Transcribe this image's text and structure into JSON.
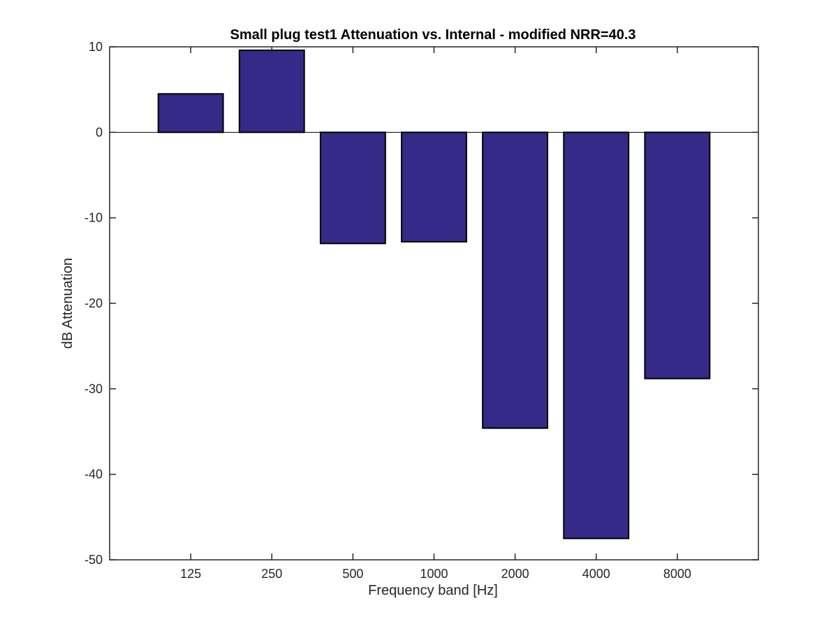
{
  "chart_data": {
    "type": "bar",
    "title": "Small plug test1 Attenuation vs. Internal - modified NRR=40.3",
    "xlabel": "Frequency band [Hz]",
    "ylabel": "dB Attenuation",
    "categories": [
      "125",
      "250",
      "500",
      "1000",
      "2000",
      "4000",
      "8000"
    ],
    "values": [
      4.5,
      9.6,
      -13.0,
      -12.8,
      -34.6,
      -47.5,
      -28.8
    ],
    "ylim": [
      -50,
      10
    ],
    "xlim": [
      0,
      8
    ],
    "yticks": [
      "10",
      "0",
      "-10",
      "-20",
      "-30",
      "-40",
      "-50"
    ],
    "grid": false,
    "bar_color": "#352a87",
    "bar_edge_color": "#000000"
  }
}
